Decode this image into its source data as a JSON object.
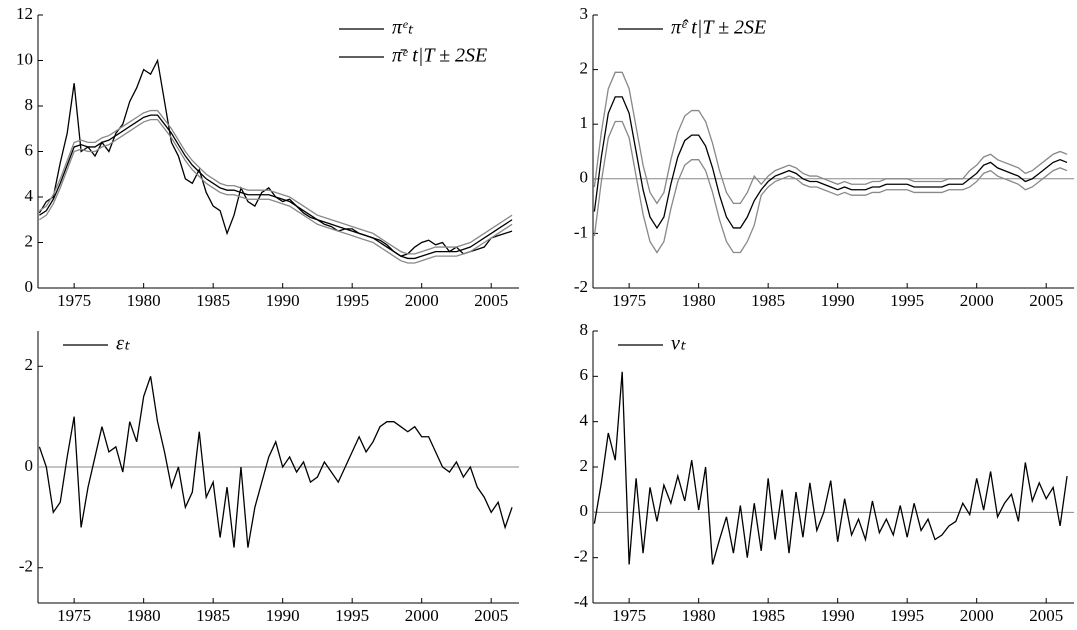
{
  "chart_data": [
    {
      "type": "line",
      "legend": "upper right",
      "xlim": [
        1972.4,
        2007
      ],
      "xticks": [
        1975,
        1980,
        1985,
        1990,
        1995,
        2000,
        2005
      ],
      "ylim": [
        0,
        12
      ],
      "yticks": [
        0,
        2,
        4,
        6,
        8,
        10,
        12
      ],
      "x": [
        1972.5,
        1973,
        1973.5,
        1974,
        1974.5,
        1975,
        1975.5,
        1976,
        1976.5,
        1977,
        1977.5,
        1978,
        1978.5,
        1979,
        1979.5,
        1980,
        1980.5,
        1981,
        1981.5,
        1982,
        1982.5,
        1983,
        1983.5,
        1984,
        1984.5,
        1985,
        1985.5,
        1986,
        1986.5,
        1987,
        1987.5,
        1988,
        1988.5,
        1989,
        1989.5,
        1990,
        1990.5,
        1991,
        1991.5,
        1992,
        1992.5,
        1993,
        1993.5,
        1994,
        1994.5,
        1995,
        1995.5,
        1996,
        1996.5,
        1997,
        1997.5,
        1998,
        1998.5,
        1999,
        1999.5,
        2000,
        2000.5,
        2001,
        2001.5,
        2002,
        2002.5,
        2003,
        2003.5,
        2004,
        2004.5,
        2005,
        2005.5,
        2006,
        2006.5
      ],
      "series": [
        {
          "name": "πᵉₜ",
          "color": "#000000",
          "values": [
            3.3,
            3.8,
            4.0,
            5.5,
            6.8,
            9.0,
            6.0,
            6.2,
            5.8,
            6.4,
            6.0,
            6.8,
            7.2,
            8.2,
            8.8,
            9.6,
            9.4,
            10.0,
            8.2,
            6.4,
            5.8,
            4.8,
            4.6,
            5.2,
            4.2,
            3.6,
            3.4,
            2.4,
            3.2,
            4.4,
            3.8,
            3.6,
            4.2,
            4.4,
            4.0,
            3.8,
            3.9,
            3.6,
            3.3,
            3.1,
            3.0,
            2.8,
            2.7,
            2.5,
            2.6,
            2.6,
            2.4,
            2.3,
            2.2,
            2.1,
            1.9,
            1.6,
            1.4,
            1.5,
            1.8,
            2.0,
            2.1,
            1.9,
            2.0,
            1.6,
            1.8,
            1.5,
            1.6,
            1.7,
            1.8,
            2.2,
            2.3,
            2.4,
            2.5
          ]
        },
        {
          "name": "π̄ᵉ t|T ± 2SE",
          "color": "#000000",
          "values": [
            3.2,
            3.4,
            3.9,
            4.6,
            5.4,
            6.2,
            6.3,
            6.2,
            6.2,
            6.4,
            6.5,
            6.7,
            6.9,
            7.1,
            7.3,
            7.5,
            7.6,
            7.6,
            7.2,
            6.8,
            6.3,
            5.8,
            5.4,
            5.1,
            4.8,
            4.6,
            4.4,
            4.3,
            4.3,
            4.2,
            4.1,
            4.1,
            4.1,
            4.1,
            4.0,
            3.9,
            3.8,
            3.6,
            3.4,
            3.2,
            3.0,
            2.9,
            2.8,
            2.7,
            2.6,
            2.5,
            2.4,
            2.3,
            2.2,
            2.0,
            1.8,
            1.6,
            1.4,
            1.3,
            1.3,
            1.4,
            1.5,
            1.6,
            1.6,
            1.6,
            1.6,
            1.7,
            1.8,
            2.0,
            2.2,
            2.4,
            2.6,
            2.8,
            3.0
          ]
        },
        {
          "color": "#888888",
          "values": [
            3.4,
            3.6,
            4.1,
            4.8,
            5.6,
            6.4,
            6.5,
            6.4,
            6.4,
            6.6,
            6.7,
            6.9,
            7.1,
            7.3,
            7.5,
            7.7,
            7.8,
            7.8,
            7.4,
            7.0,
            6.5,
            6.0,
            5.6,
            5.3,
            5.0,
            4.8,
            4.6,
            4.5,
            4.5,
            4.4,
            4.3,
            4.3,
            4.3,
            4.3,
            4.2,
            4.1,
            4.0,
            3.8,
            3.6,
            3.4,
            3.2,
            3.1,
            3.0,
            2.9,
            2.8,
            2.7,
            2.6,
            2.5,
            2.4,
            2.2,
            2.0,
            1.8,
            1.6,
            1.5,
            1.5,
            1.6,
            1.7,
            1.8,
            1.8,
            1.8,
            1.8,
            1.9,
            2.0,
            2.2,
            2.4,
            2.6,
            2.8,
            3.0,
            3.2
          ]
        },
        {
          "color": "#888888",
          "values": [
            3.0,
            3.2,
            3.7,
            4.4,
            5.2,
            6.0,
            6.1,
            6.0,
            6.0,
            6.2,
            6.3,
            6.5,
            6.7,
            6.9,
            7.1,
            7.3,
            7.4,
            7.4,
            7.0,
            6.6,
            6.1,
            5.6,
            5.2,
            4.9,
            4.6,
            4.4,
            4.2,
            4.1,
            4.1,
            4.0,
            3.9,
            3.9,
            3.9,
            3.9,
            3.8,
            3.7,
            3.6,
            3.4,
            3.2,
            3.0,
            2.8,
            2.7,
            2.6,
            2.5,
            2.4,
            2.3,
            2.2,
            2.1,
            2.0,
            1.8,
            1.6,
            1.4,
            1.2,
            1.1,
            1.1,
            1.2,
            1.3,
            1.4,
            1.4,
            1.4,
            1.4,
            1.5,
            1.6,
            1.8,
            2.0,
            2.2,
            2.4,
            2.6,
            2.8
          ]
        }
      ]
    },
    {
      "type": "line",
      "legend": "upper left",
      "hline": 0,
      "xlim": [
        1972.4,
        2007
      ],
      "xticks": [
        1975,
        1980,
        1985,
        1990,
        1995,
        2000,
        2005
      ],
      "ylim": [
        -2,
        3
      ],
      "yticks": [
        -2,
        -1,
        0,
        1,
        2,
        3
      ],
      "x": [
        1972.5,
        1973,
        1973.5,
        1974,
        1974.5,
        1975,
        1975.5,
        1976,
        1976.5,
        1977,
        1977.5,
        1978,
        1978.5,
        1979,
        1979.5,
        1980,
        1980.5,
        1981,
        1981.5,
        1982,
        1982.5,
        1983,
        1983.5,
        1984,
        1984.5,
        1985,
        1985.5,
        1986,
        1986.5,
        1987,
        1987.5,
        1988,
        1988.5,
        1989,
        1989.5,
        1990,
        1990.5,
        1991,
        1991.5,
        1992,
        1992.5,
        1993,
        1993.5,
        1994,
        1994.5,
        1995,
        1995.5,
        1996,
        1996.5,
        1997,
        1997.5,
        1998,
        1998.5,
        1999,
        1999.5,
        2000,
        2000.5,
        2001,
        2001.5,
        2002,
        2002.5,
        2003,
        2003.5,
        2004,
        2004.5,
        2005,
        2005.5,
        2006,
        2006.5
      ],
      "series": [
        {
          "name": "π̂ᵉ t|T ± 2SE",
          "color": "#000000",
          "values": [
            -0.6,
            0.4,
            1.2,
            1.5,
            1.5,
            1.2,
            0.5,
            -0.2,
            -0.7,
            -0.9,
            -0.7,
            -0.1,
            0.4,
            0.7,
            0.8,
            0.8,
            0.6,
            0.2,
            -0.3,
            -0.7,
            -0.9,
            -0.9,
            -0.7,
            -0.4,
            -0.2,
            -0.05,
            0.05,
            0.1,
            0.15,
            0.1,
            0.0,
            -0.05,
            -0.05,
            -0.1,
            -0.15,
            -0.2,
            -0.15,
            -0.2,
            -0.2,
            -0.2,
            -0.15,
            -0.15,
            -0.1,
            -0.1,
            -0.1,
            -0.1,
            -0.15,
            -0.15,
            -0.15,
            -0.15,
            -0.15,
            -0.1,
            -0.1,
            -0.1,
            0.0,
            0.1,
            0.25,
            0.3,
            0.2,
            0.15,
            0.1,
            0.05,
            -0.05,
            0.0,
            0.1,
            0.2,
            0.3,
            0.35,
            0.3
          ]
        },
        {
          "color": "#888888",
          "values": [
            -0.15,
            0.85,
            1.65,
            1.95,
            1.95,
            1.65,
            0.95,
            0.25,
            -0.25,
            -0.45,
            -0.25,
            0.35,
            0.85,
            1.15,
            1.25,
            1.25,
            1.05,
            0.65,
            0.15,
            -0.25,
            -0.45,
            -0.45,
            -0.25,
            0.05,
            -0.1,
            0.05,
            0.15,
            0.2,
            0.25,
            0.2,
            0.1,
            0.05,
            0.05,
            0.0,
            -0.05,
            -0.1,
            -0.05,
            -0.1,
            -0.1,
            -0.1,
            -0.05,
            -0.05,
            0.0,
            0.0,
            0.0,
            0.0,
            -0.05,
            -0.05,
            -0.05,
            -0.05,
            -0.05,
            0.0,
            0.0,
            0.0,
            0.15,
            0.25,
            0.4,
            0.45,
            0.35,
            0.3,
            0.25,
            0.2,
            0.1,
            0.15,
            0.25,
            0.35,
            0.45,
            0.5,
            0.45
          ]
        },
        {
          "color": "#888888",
          "values": [
            -1.05,
            -0.05,
            0.75,
            1.05,
            1.05,
            0.75,
            0.05,
            -0.65,
            -1.15,
            -1.35,
            -1.15,
            -0.55,
            -0.05,
            0.25,
            0.35,
            0.35,
            0.15,
            -0.25,
            -0.75,
            -1.15,
            -1.35,
            -1.35,
            -1.15,
            -0.85,
            -0.3,
            -0.15,
            -0.05,
            0.0,
            0.05,
            0.0,
            -0.1,
            -0.15,
            -0.15,
            -0.2,
            -0.25,
            -0.3,
            -0.25,
            -0.3,
            -0.3,
            -0.3,
            -0.25,
            -0.25,
            -0.2,
            -0.2,
            -0.2,
            -0.2,
            -0.25,
            -0.25,
            -0.25,
            -0.25,
            -0.25,
            -0.2,
            -0.2,
            -0.2,
            -0.15,
            -0.05,
            0.1,
            0.15,
            0.05,
            0.0,
            -0.05,
            -0.1,
            -0.2,
            -0.15,
            -0.05,
            0.05,
            0.15,
            0.2,
            0.15
          ]
        }
      ]
    },
    {
      "type": "line",
      "legend": "upper left",
      "hline": 0,
      "xlim": [
        1972.4,
        2007
      ],
      "xticks": [
        1975,
        1980,
        1985,
        1990,
        1995,
        2000,
        2005
      ],
      "ylim": [
        -2.7,
        2.7
      ],
      "yticks": [
        -2,
        0,
        2
      ],
      "x": [
        1972.5,
        1973,
        1973.5,
        1974,
        1974.5,
        1975,
        1975.5,
        1976,
        1976.5,
        1977,
        1977.5,
        1978,
        1978.5,
        1979,
        1979.5,
        1980,
        1980.5,
        1981,
        1981.5,
        1982,
        1982.5,
        1983,
        1983.5,
        1984,
        1984.5,
        1985,
        1985.5,
        1986,
        1986.5,
        1987,
        1987.5,
        1988,
        1988.5,
        1989,
        1989.5,
        1990,
        1990.5,
        1991,
        1991.5,
        1992,
        1992.5,
        1993,
        1993.5,
        1994,
        1994.5,
        1995,
        1995.5,
        1996,
        1996.5,
        1997,
        1997.5,
        1998,
        1998.5,
        1999,
        1999.5,
        2000,
        2000.5,
        2001,
        2001.5,
        2002,
        2002.5,
        2003,
        2003.5,
        2004,
        2004.5,
        2005,
        2005.5,
        2006,
        2006.5
      ],
      "series": [
        {
          "name": "εₜ",
          "color": "#000000",
          "values": [
            0.4,
            0.0,
            -0.9,
            -0.7,
            0.2,
            1.0,
            -1.2,
            -0.4,
            0.2,
            0.8,
            0.3,
            0.4,
            -0.1,
            0.9,
            0.5,
            1.4,
            1.8,
            0.9,
            0.3,
            -0.4,
            0.0,
            -0.8,
            -0.5,
            0.7,
            -0.6,
            -0.3,
            -1.4,
            -0.4,
            -1.6,
            0.0,
            -1.6,
            -0.8,
            -0.3,
            0.2,
            0.5,
            0.0,
            0.2,
            -0.1,
            0.1,
            -0.3,
            -0.2,
            0.1,
            -0.1,
            -0.3,
            0.0,
            0.3,
            0.6,
            0.3,
            0.5,
            0.8,
            0.9,
            0.9,
            0.8,
            0.7,
            0.8,
            0.6,
            0.6,
            0.3,
            0.0,
            -0.1,
            0.1,
            -0.2,
            0.0,
            -0.4,
            -0.6,
            -0.9,
            -0.7,
            -1.2,
            -0.8
          ]
        }
      ]
    },
    {
      "type": "line",
      "legend": "upper left",
      "hline": 0,
      "xlim": [
        1972.4,
        2007
      ],
      "xticks": [
        1975,
        1980,
        1985,
        1990,
        1995,
        2000,
        2005
      ],
      "ylim": [
        -4,
        8
      ],
      "yticks": [
        -4,
        -2,
        0,
        2,
        4,
        6,
        8
      ],
      "x": [
        1972.5,
        1973,
        1973.5,
        1974,
        1974.5,
        1975,
        1975.5,
        1976,
        1976.5,
        1977,
        1977.5,
        1978,
        1978.5,
        1979,
        1979.5,
        1980,
        1980.5,
        1981,
        1981.5,
        1982,
        1982.5,
        1983,
        1983.5,
        1984,
        1984.5,
        1985,
        1985.5,
        1986,
        1986.5,
        1987,
        1987.5,
        1988,
        1988.5,
        1989,
        1989.5,
        1990,
        1990.5,
        1991,
        1991.5,
        1992,
        1992.5,
        1993,
        1993.5,
        1994,
        1994.5,
        1995,
        1995.5,
        1996,
        1996.5,
        1997,
        1997.5,
        1998,
        1998.5,
        1999,
        1999.5,
        2000,
        2000.5,
        2001,
        2001.5,
        2002,
        2002.5,
        2003,
        2003.5,
        2004,
        2004.5,
        2005,
        2005.5,
        2006,
        2006.5
      ],
      "series": [
        {
          "name": "νₜ",
          "color": "#000000",
          "values": [
            -0.5,
            1.3,
            3.5,
            2.3,
            6.2,
            -2.3,
            1.5,
            -1.8,
            1.1,
            -0.4,
            1.2,
            0.4,
            1.6,
            0.5,
            2.3,
            0.1,
            2.0,
            -2.3,
            -1.2,
            -0.2,
            -1.8,
            0.3,
            -2.0,
            0.4,
            -1.7,
            1.5,
            -1.2,
            1.0,
            -1.8,
            0.9,
            -1.1,
            1.3,
            -0.8,
            0.0,
            1.4,
            -1.3,
            0.6,
            -1.0,
            -0.3,
            -1.2,
            0.5,
            -0.9,
            -0.3,
            -1.0,
            0.3,
            -1.1,
            0.4,
            -0.8,
            -0.3,
            -1.2,
            -1.0,
            -0.6,
            -0.4,
            0.4,
            -0.1,
            1.5,
            0.1,
            1.8,
            -0.2,
            0.4,
            0.8,
            -0.4,
            2.2,
            0.5,
            1.3,
            0.6,
            1.1,
            -0.6,
            1.6
          ]
        }
      ]
    }
  ]
}
